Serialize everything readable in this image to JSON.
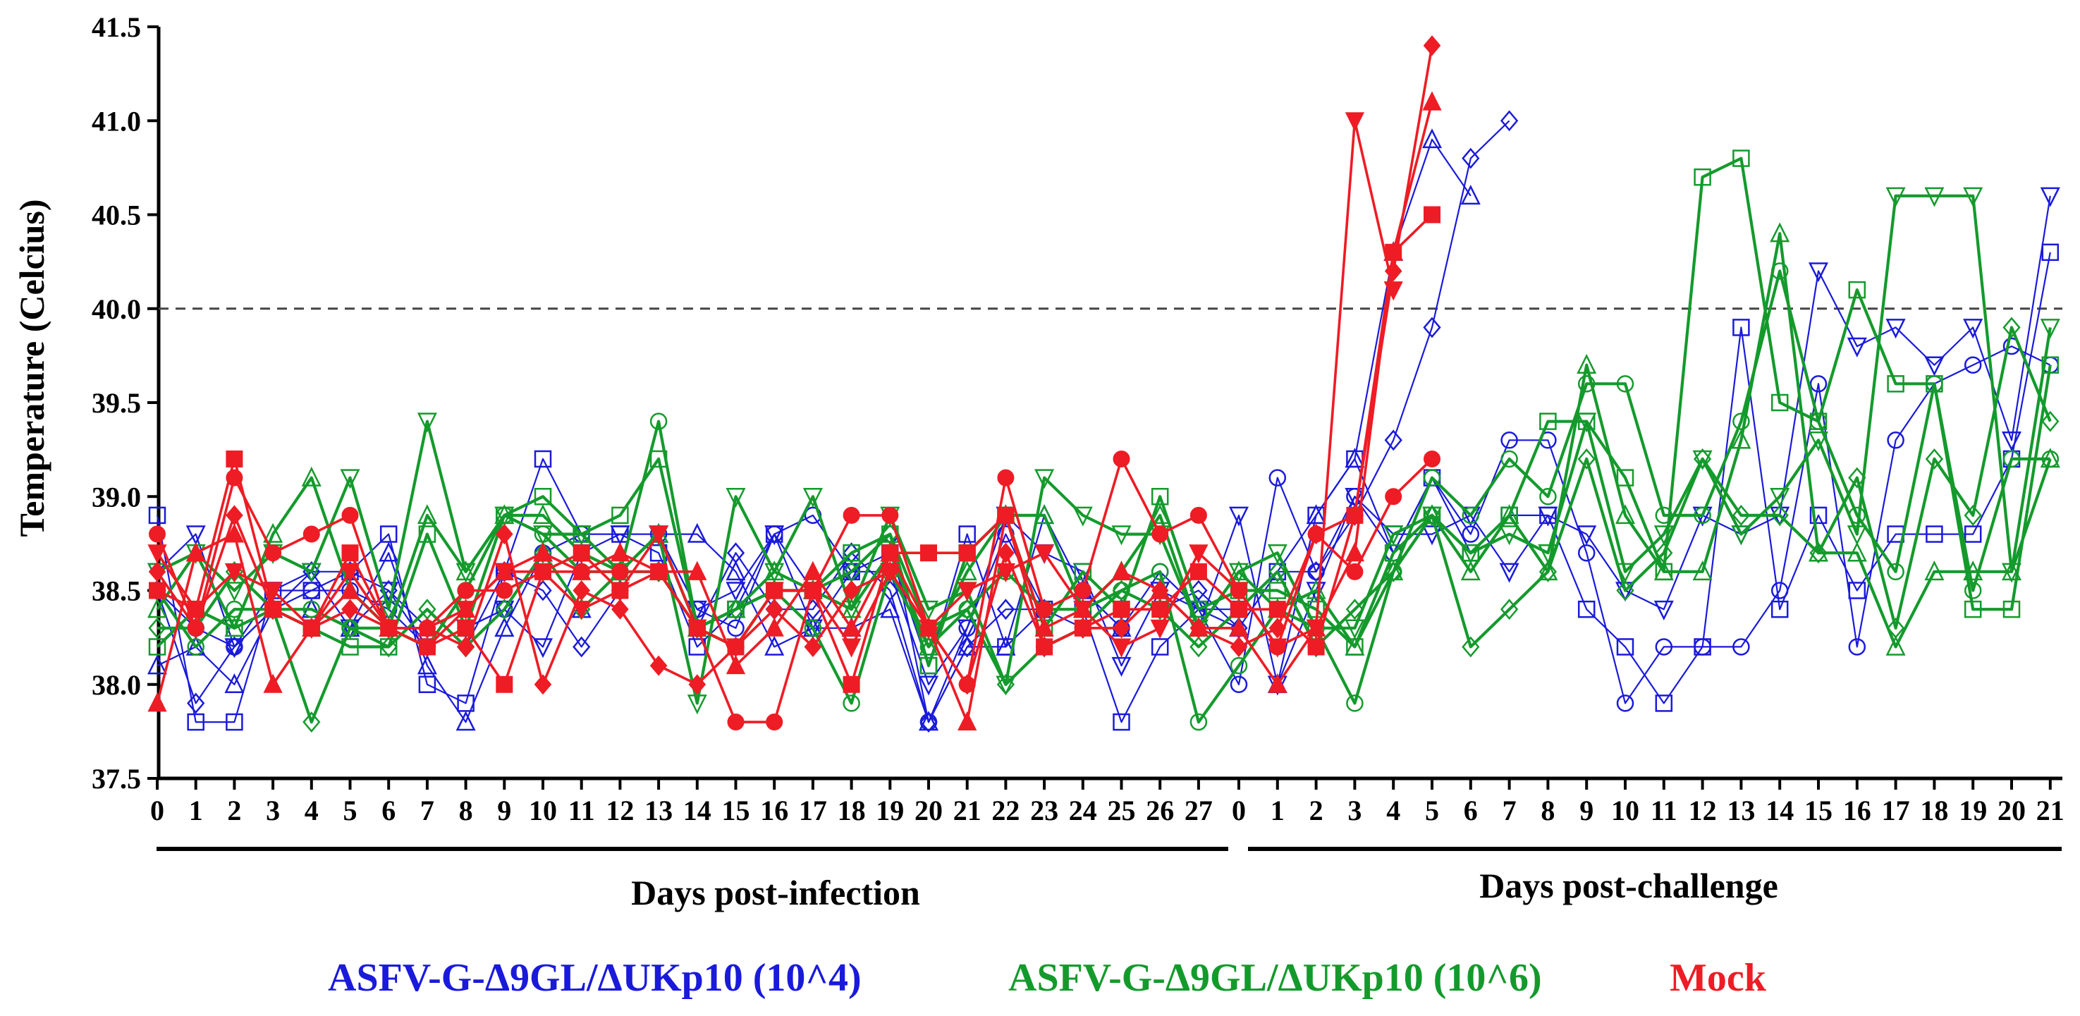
{
  "chart_data": {
    "type": "line",
    "ylabel": "Temperature (Celcius)",
    "ylim": [
      37.5,
      41.5
    ],
    "yticks": [
      "37.5",
      "38.0",
      "38.5",
      "39.0",
      "39.5",
      "40.0",
      "40.5",
      "41.0",
      "41.5"
    ],
    "threshold": 40.0,
    "segments": [
      {
        "label": "Days post-infection",
        "ticks": [
          "0",
          "1",
          "2",
          "3",
          "4",
          "5",
          "6",
          "7",
          "8",
          "9",
          "10",
          "11",
          "12",
          "13",
          "14",
          "15",
          "16",
          "17",
          "18",
          "19",
          "20",
          "21",
          "22",
          "23",
          "24",
          "25",
          "26",
          "27"
        ]
      },
      {
        "label": "Days post-challenge",
        "ticks": [
          "0",
          "1",
          "2",
          "3",
          "4",
          "5",
          "6",
          "7",
          "8",
          "9",
          "10",
          "11",
          "12",
          "13",
          "14",
          "15",
          "16",
          "17",
          "18",
          "19",
          "20",
          "21"
        ]
      }
    ],
    "colors": {
      "low": "#1a1adb",
      "high": "#149a2c",
      "mock": "#ee1c25"
    },
    "legend": [
      {
        "name": "ASFV-G-Δ9GL/ΔUKp10 (10^4)",
        "color": "#1a1adb"
      },
      {
        "name": "ASFV-G-Δ9GL/ΔUKp10 (10^6)",
        "color": "#149a2c"
      },
      {
        "name": "Mock",
        "color": "#ee1c25"
      }
    ],
    "series": [
      {
        "group": "low",
        "marker": "circle",
        "fill": "none",
        "values": [
          38.5,
          38.3,
          38.2,
          38.4,
          38.5,
          38.5,
          38.4,
          38.2,
          38.3,
          38.4,
          38.7,
          38.8,
          38.6,
          38.8,
          38.4,
          38.3,
          38.8,
          38.9,
          38.6,
          38.8,
          37.8,
          38.3,
          38.8,
          38.4,
          38.5,
          38.3,
          38.6,
          38.4,
          38.0,
          39.1,
          38.6,
          39.0,
          38.7,
          39.1,
          38.8,
          39.3,
          39.3,
          38.7,
          37.9,
          38.2,
          38.2,
          38.2,
          38.5,
          39.6,
          38.2,
          39.3,
          39.6,
          39.7,
          39.8,
          39.7
        ]
      },
      {
        "group": "low",
        "marker": "square",
        "fill": "none",
        "values": [
          38.9,
          37.8,
          37.8,
          38.5,
          38.5,
          38.6,
          38.8,
          38.0,
          37.9,
          38.6,
          39.2,
          38.8,
          38.8,
          38.7,
          38.2,
          38.4,
          38.8,
          38.5,
          38.6,
          38.7,
          38.1,
          38.8,
          38.2,
          38.4,
          38.4,
          37.8,
          38.2,
          38.4,
          38.4,
          38.6,
          38.9,
          39.2,
          38.7,
          39.1,
          38.7,
          38.9,
          38.9,
          38.4,
          38.2,
          37.9,
          38.2,
          39.9,
          38.4,
          38.9,
          38.5,
          38.8,
          38.8,
          38.8,
          39.2,
          40.3
        ]
      },
      {
        "group": "low",
        "marker": "triangle-up",
        "fill": "none",
        "values": [
          38.1,
          38.2,
          38.0,
          38.4,
          38.4,
          38.3,
          38.7,
          38.1,
          37.8,
          38.3,
          38.7,
          38.4,
          38.6,
          38.8,
          38.8,
          38.6,
          38.2,
          38.3,
          38.3,
          38.4,
          37.8,
          38.2,
          38.2,
          38.9,
          38.5,
          38.3,
          38.5,
          38.4,
          38.3,
          38.0,
          38.9,
          39.2,
          40.3,
          40.9,
          40.6
        ]
      },
      {
        "group": "low",
        "marker": "triangle-down",
        "fill": "none",
        "values": [
          38.6,
          38.8,
          38.2,
          38.5,
          38.6,
          38.3,
          38.5,
          38.2,
          38.3,
          38.4,
          38.2,
          38.7,
          38.8,
          38.8,
          38.4,
          38.5,
          38.8,
          38.3,
          38.6,
          38.6,
          38.0,
          38.3,
          38.9,
          38.7,
          38.6,
          38.1,
          38.5,
          38.3,
          38.9,
          38.0,
          38.5,
          39.0,
          38.8,
          38.8,
          38.9,
          38.6,
          38.9,
          38.8,
          38.5,
          38.4,
          38.9,
          38.8,
          38.9,
          40.2,
          39.8,
          39.9,
          39.7,
          39.9,
          39.3,
          40.6
        ]
      },
      {
        "group": "low",
        "marker": "diamond",
        "fill": "none",
        "values": [
          38.5,
          37.9,
          38.2,
          38.4,
          38.6,
          38.6,
          38.5,
          38.3,
          38.2,
          38.6,
          38.5,
          38.2,
          38.5,
          38.6,
          38.3,
          38.7,
          38.4,
          38.4,
          38.7,
          38.5,
          37.8,
          38.2,
          38.4,
          38.4,
          38.3,
          38.4,
          38.4,
          38.5,
          38.3,
          38.6,
          38.6,
          38.9,
          39.3,
          39.9,
          40.8,
          41.0
        ]
      },
      {
        "group": "high",
        "marker": "circle",
        "fill": "none",
        "values": [
          38.5,
          38.2,
          38.4,
          38.4,
          38.4,
          38.3,
          38.3,
          38.2,
          38.5,
          38.9,
          38.8,
          38.6,
          38.6,
          39.4,
          38.3,
          38.2,
          38.5,
          38.3,
          37.9,
          38.6,
          38.2,
          38.4,
          38.6,
          38.4,
          38.4,
          38.5,
          38.6,
          37.8,
          38.1,
          38.4,
          38.3,
          37.9,
          38.6,
          39.1,
          38.9,
          39.2,
          39.0,
          39.6,
          39.6,
          38.9,
          38.9,
          39.4,
          40.2,
          39.4,
          38.9,
          38.6,
          39.6,
          38.5,
          39.2,
          39.2
        ]
      },
      {
        "group": "high",
        "marker": "square",
        "fill": "none",
        "values": [
          38.2,
          38.4,
          38.3,
          38.4,
          38.3,
          38.2,
          38.2,
          38.8,
          38.3,
          38.9,
          39.0,
          38.8,
          38.9,
          39.2,
          38.3,
          38.4,
          38.5,
          38.5,
          38.7,
          38.8,
          38.1,
          38.7,
          38.9,
          38.3,
          38.6,
          38.4,
          39.0,
          38.4,
          38.5,
          38.5,
          38.4,
          38.2,
          38.7,
          38.9,
          38.7,
          38.9,
          39.4,
          39.4,
          39.1,
          38.6,
          40.7,
          40.8,
          39.5,
          39.4,
          40.1,
          39.6,
          39.6,
          38.4,
          38.4,
          39.7
        ]
      },
      {
        "group": "high",
        "marker": "triangle-up",
        "fill": "none",
        "values": [
          38.4,
          38.7,
          38.3,
          38.8,
          39.1,
          38.5,
          38.3,
          38.9,
          38.6,
          38.9,
          38.9,
          38.7,
          38.6,
          38.8,
          38.3,
          38.4,
          38.6,
          38.5,
          38.4,
          38.7,
          38.2,
          38.6,
          38.9,
          38.9,
          38.4,
          38.6,
          38.9,
          38.3,
          38.6,
          38.4,
          38.5,
          38.2,
          38.6,
          38.9,
          38.6,
          38.9,
          38.6,
          39.7,
          38.9,
          38.6,
          38.6,
          39.3,
          40.4,
          38.7,
          38.7,
          38.2,
          38.6,
          38.6,
          38.6,
          39.2
        ]
      },
      {
        "group": "high",
        "marker": "triangle-down",
        "fill": "none",
        "values": [
          38.6,
          38.7,
          38.5,
          38.7,
          38.6,
          39.1,
          38.4,
          39.4,
          38.6,
          38.9,
          38.8,
          38.8,
          38.6,
          38.8,
          37.9,
          39.0,
          38.6,
          39.0,
          38.4,
          38.9,
          38.4,
          38.5,
          38.0,
          39.1,
          38.9,
          38.8,
          38.8,
          38.3,
          38.6,
          38.7,
          38.3,
          38.3,
          38.8,
          38.9,
          38.7,
          38.8,
          38.7,
          39.4,
          38.6,
          38.8,
          39.2,
          38.8,
          39.0,
          39.3,
          38.8,
          40.6,
          40.6,
          40.6,
          38.6,
          39.9
        ]
      },
      {
        "group": "high",
        "marker": "diamond",
        "fill": "none",
        "values": [
          38.3,
          38.3,
          38.6,
          38.4,
          37.8,
          38.3,
          38.2,
          38.4,
          38.2,
          38.4,
          38.7,
          38.4,
          38.6,
          38.6,
          38.3,
          38.4,
          38.5,
          38.5,
          38.6,
          38.8,
          38.3,
          38.4,
          38.0,
          38.2,
          38.3,
          38.5,
          38.4,
          38.2,
          38.4,
          38.6,
          38.2,
          38.4,
          38.6,
          38.9,
          38.2,
          38.4,
          38.6,
          39.2,
          38.5,
          38.7,
          39.2,
          38.9,
          38.9,
          38.7,
          39.1,
          38.3,
          39.2,
          38.9,
          39.9,
          39.4
        ]
      },
      {
        "group": "mock",
        "marker": "circle",
        "fill": "solid",
        "values": [
          38.8,
          38.3,
          39.1,
          38.7,
          38.8,
          38.9,
          38.3,
          38.3,
          38.5,
          38.5,
          38.6,
          38.6,
          38.6,
          38.6,
          38.3,
          37.8,
          37.8,
          38.5,
          38.9,
          38.9,
          38.3,
          38.0,
          39.1,
          38.4,
          38.5,
          39.2,
          38.8,
          38.9,
          38.5,
          38.2,
          38.8,
          38.6,
          39.0,
          39.2
        ]
      },
      {
        "group": "mock",
        "marker": "square",
        "fill": "solid",
        "values": [
          38.5,
          38.4,
          39.2,
          38.4,
          38.3,
          38.7,
          38.3,
          38.2,
          38.3,
          38.0,
          38.6,
          38.7,
          38.5,
          38.6,
          38.3,
          38.2,
          38.5,
          38.5,
          38.0,
          38.7,
          38.7,
          38.7,
          38.9,
          38.2,
          38.3,
          38.4,
          38.4,
          38.6,
          38.4,
          38.4,
          38.2,
          38.9,
          40.3,
          40.5
        ]
      },
      {
        "group": "mock",
        "marker": "triangle-up",
        "fill": "solid",
        "values": [
          37.9,
          38.7,
          38.8,
          38.0,
          38.3,
          38.5,
          38.3,
          38.3,
          38.4,
          38.6,
          38.7,
          38.6,
          38.7,
          38.6,
          38.6,
          38.1,
          38.3,
          38.6,
          38.3,
          38.7,
          38.3,
          37.8,
          38.9,
          38.3,
          38.4,
          38.6,
          38.5,
          38.3,
          38.3,
          38.0,
          38.3,
          38.7,
          40.3,
          41.1
        ]
      },
      {
        "group": "mock",
        "marker": "triangle-down",
        "fill": "solid",
        "values": [
          38.7,
          38.4,
          38.6,
          38.5,
          38.3,
          38.6,
          38.3,
          38.2,
          38.4,
          38.6,
          38.6,
          38.4,
          38.5,
          38.8,
          38.3,
          38.2,
          38.5,
          38.5,
          38.2,
          38.6,
          38.3,
          38.5,
          38.6,
          38.7,
          38.4,
          38.2,
          38.3,
          38.7,
          38.5,
          38.2,
          38.3,
          41.0,
          40.1
        ]
      },
      {
        "group": "mock",
        "marker": "diamond",
        "fill": "solid",
        "values": [
          38.6,
          38.3,
          38.9,
          38.4,
          38.3,
          38.4,
          38.3,
          38.3,
          38.2,
          38.8,
          38.0,
          38.5,
          38.4,
          38.1,
          38.0,
          38.2,
          38.4,
          38.2,
          38.5,
          38.6,
          38.3,
          38.0,
          38.7,
          38.2,
          38.3,
          38.3,
          38.5,
          38.3,
          38.2,
          38.3,
          38.8,
          38.9,
          40.2,
          41.4
        ]
      }
    ]
  }
}
